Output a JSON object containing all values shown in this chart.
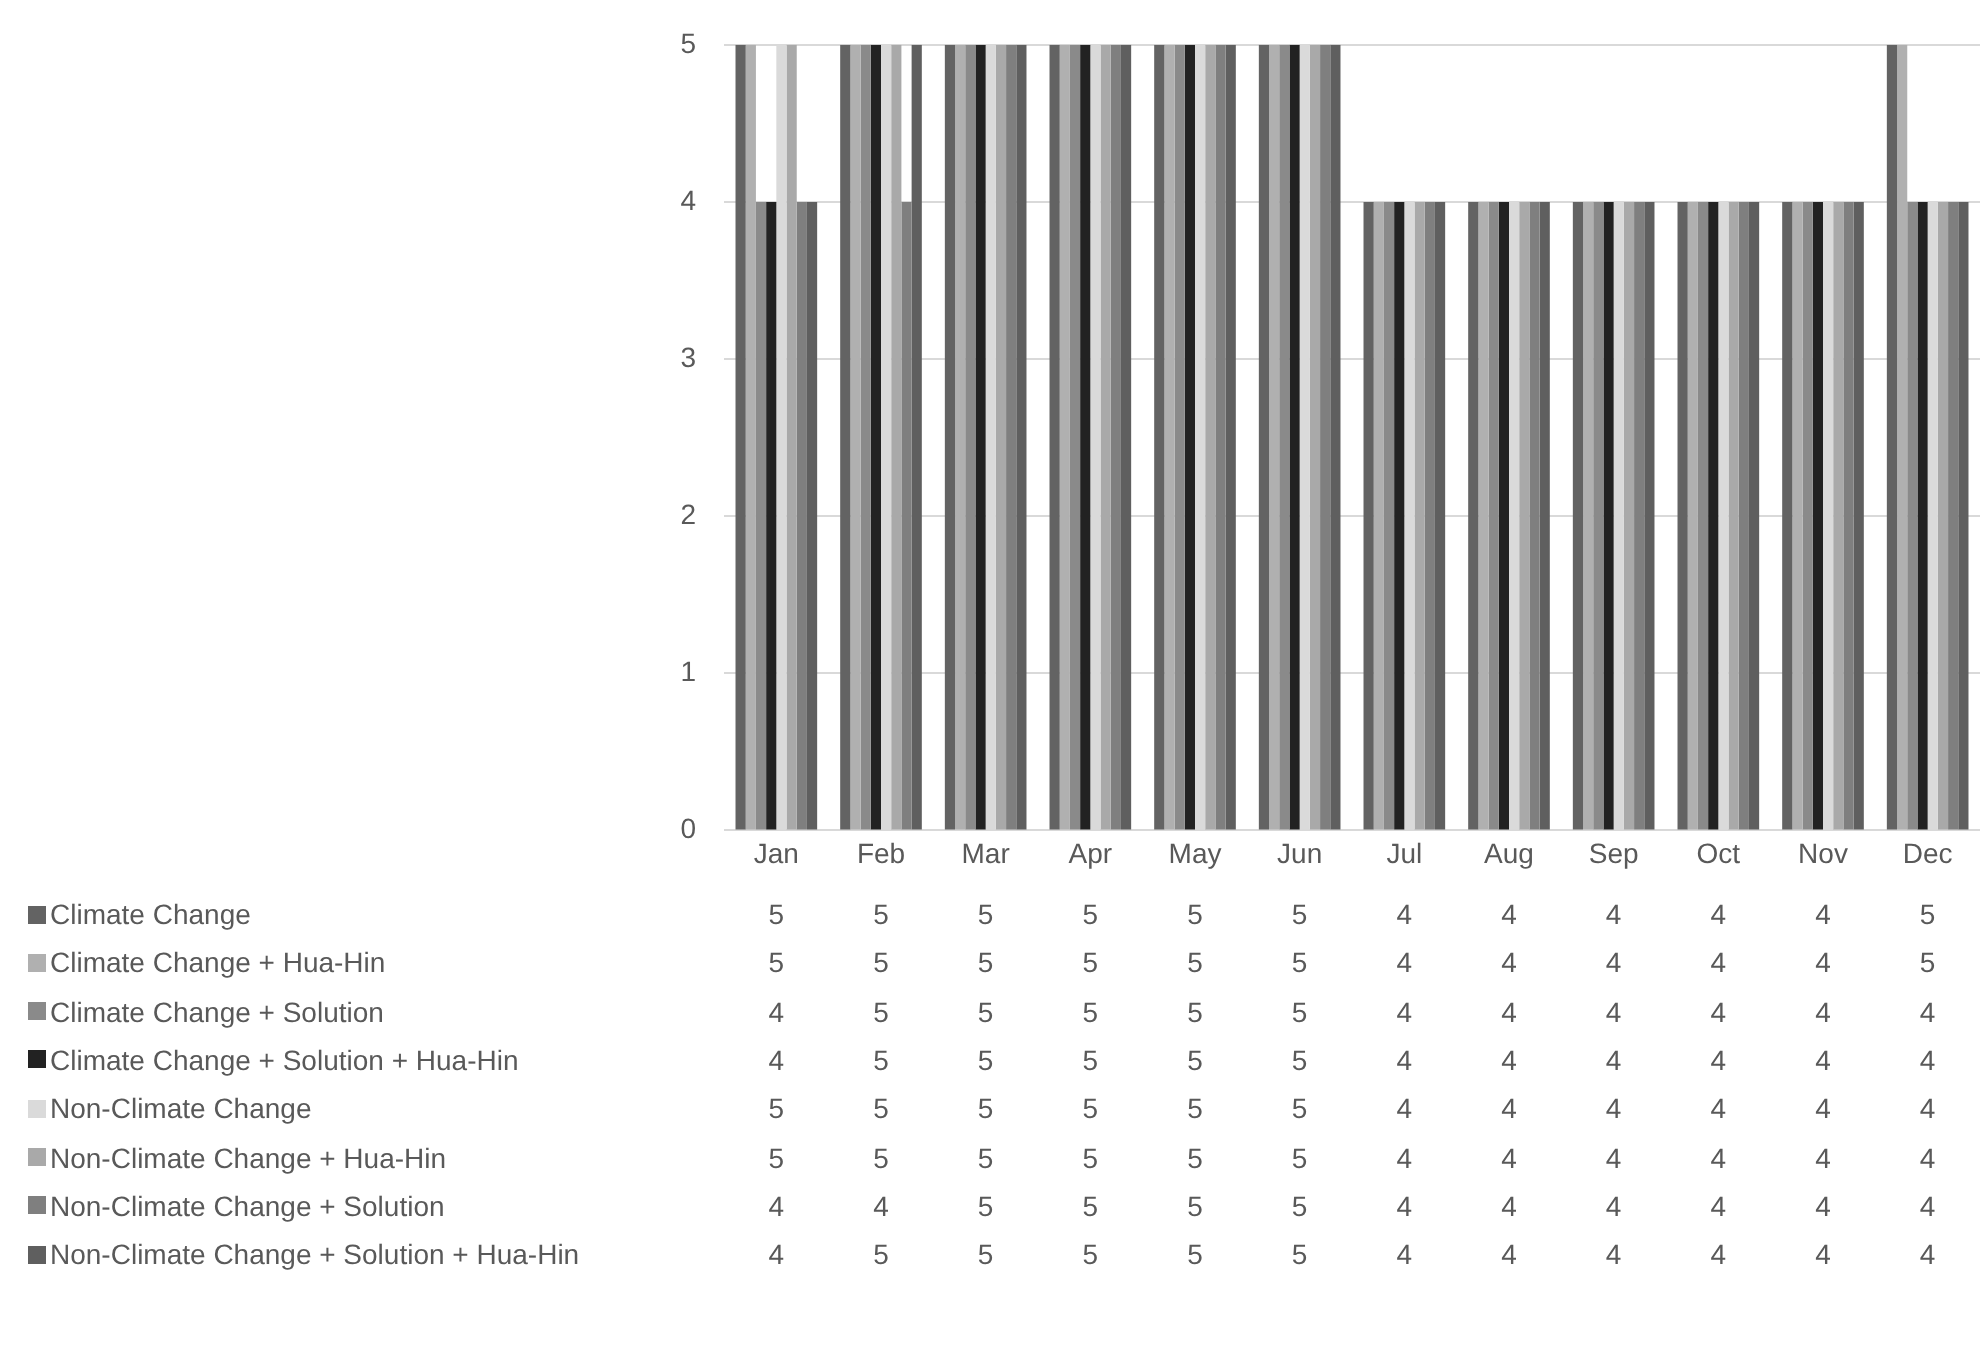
{
  "chart_data": {
    "type": "bar",
    "categories": [
      "Jan",
      "Feb",
      "Mar",
      "Apr",
      "May",
      "Jun",
      "Jul",
      "Aug",
      "Sep",
      "Oct",
      "Nov",
      "Dec"
    ],
    "series": [
      {
        "name": "Climate Change",
        "color": "#636363",
        "values": [
          5,
          5,
          5,
          5,
          5,
          5,
          4,
          4,
          4,
          4,
          4,
          5
        ]
      },
      {
        "name": "Climate Change + Hua-Hin",
        "color": "#b0b0b0",
        "values": [
          5,
          5,
          5,
          5,
          5,
          5,
          4,
          4,
          4,
          4,
          4,
          5
        ]
      },
      {
        "name": "Climate Change + Solution",
        "color": "#8a8a8a",
        "values": [
          4,
          5,
          5,
          5,
          5,
          5,
          4,
          4,
          4,
          4,
          4,
          4
        ]
      },
      {
        "name": "Climate Change + Solution + Hua-Hin",
        "color": "#222222",
        "values": [
          4,
          5,
          5,
          5,
          5,
          5,
          4,
          4,
          4,
          4,
          4,
          4
        ]
      },
      {
        "name": "Non-Climate Change",
        "color": "#dadada",
        "values": [
          5,
          5,
          5,
          5,
          5,
          5,
          4,
          4,
          4,
          4,
          4,
          4
        ]
      },
      {
        "name": "Non-Climate Change + Hua-Hin",
        "color": "#a9a9a9",
        "values": [
          5,
          5,
          5,
          5,
          5,
          5,
          4,
          4,
          4,
          4,
          4,
          4
        ]
      },
      {
        "name": "Non-Climate Change + Solution",
        "color": "#7f7f7f",
        "values": [
          4,
          4,
          5,
          5,
          5,
          5,
          4,
          4,
          4,
          4,
          4,
          4
        ]
      },
      {
        "name": "Non-Climate Change + Solution + Hua-Hin",
        "color": "#5f5f5f",
        "values": [
          4,
          5,
          5,
          5,
          5,
          5,
          4,
          4,
          4,
          4,
          4,
          4
        ]
      }
    ],
    "ylim": [
      0,
      5
    ],
    "yticks": [
      0,
      1,
      2,
      3,
      4,
      5
    ],
    "grid": "y",
    "legend": "bottom",
    "data_labels": true
  }
}
